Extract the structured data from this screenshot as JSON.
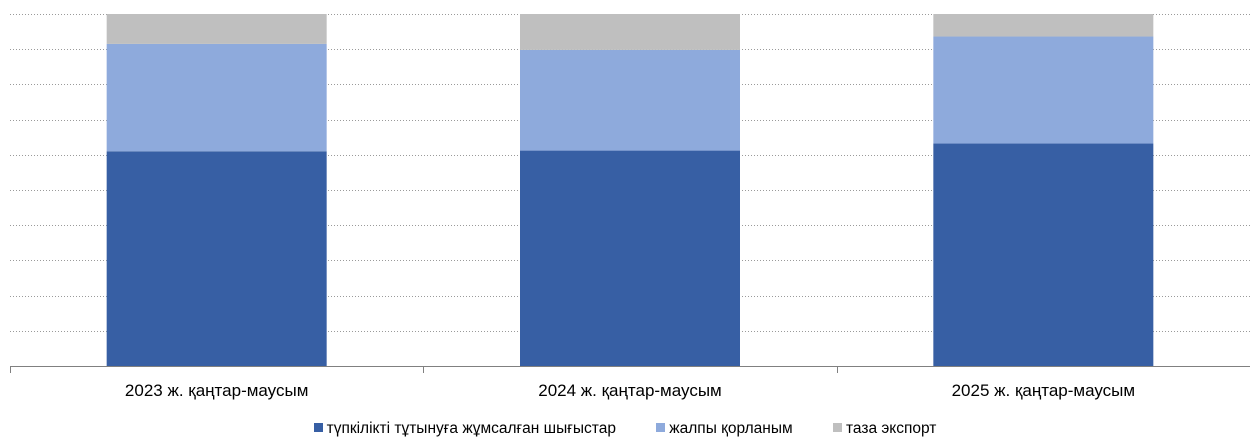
{
  "chart_data": {
    "type": "bar",
    "stacked": true,
    "percent": true,
    "categories": [
      "2023 ж. қаңтар-маусым",
      "2024 ж. қаңтар-маусым",
      "2025 ж. қаңтар-маусым"
    ],
    "series": [
      {
        "name": "түпкілікті тұтынуға жұмсалған шығыстар",
        "color": "#375fa4",
        "values": [
          61,
          61.2,
          63.2
        ]
      },
      {
        "name": "жалпы қорланым",
        "color": "#8eaadc",
        "values": [
          30.5,
          28.6,
          30.4
        ]
      },
      {
        "name": "таза экспорт",
        "color": "#bfbfbf",
        "values": [
          8.5,
          10.2,
          6.4
        ]
      }
    ],
    "ylim": [
      0,
      100
    ],
    "grid": true,
    "legend_position": "bottom"
  }
}
